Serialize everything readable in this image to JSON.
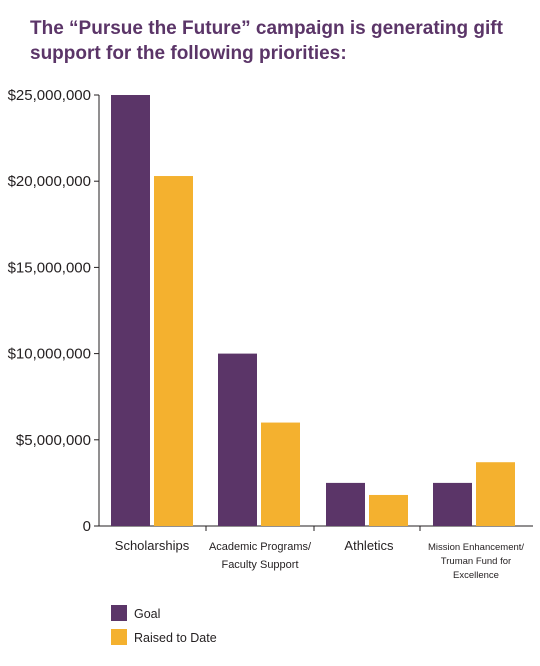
{
  "title": "The “Pursue the Future” campaign is generating gift support for the following priorities:",
  "colors": {
    "goal": "#5b3568",
    "raised": "#f4b12f",
    "axis": "#231f20"
  },
  "chart_data": {
    "type": "bar",
    "title": "The “Pursue the Future” campaign is generating gift support for the following priorities:",
    "categories": [
      [
        "Scholarships"
      ],
      [
        "Academic Programs/",
        "Faculty Support"
      ],
      [
        "Athletics"
      ],
      [
        "Mission Enhancement/",
        "Truman Fund for",
        "Excellence"
      ]
    ],
    "series": [
      {
        "name": "Goal",
        "values": [
          25000000,
          10000000,
          2500000,
          2500000
        ]
      },
      {
        "name": "Raised to Date",
        "values": [
          20300000,
          6000000,
          1800000,
          3700000
        ]
      }
    ],
    "yticks": [
      "0",
      "$5,000,000",
      "$10,000,000",
      "$15,000,000",
      "$20,000,000",
      "$25,000,000"
    ],
    "ytick_values": [
      0,
      5000000,
      10000000,
      15000000,
      20000000,
      25000000
    ],
    "ylim": [
      0,
      25000000
    ],
    "xlabel": "",
    "ylabel": "",
    "legend_position": "bottom-left",
    "grid": false
  }
}
